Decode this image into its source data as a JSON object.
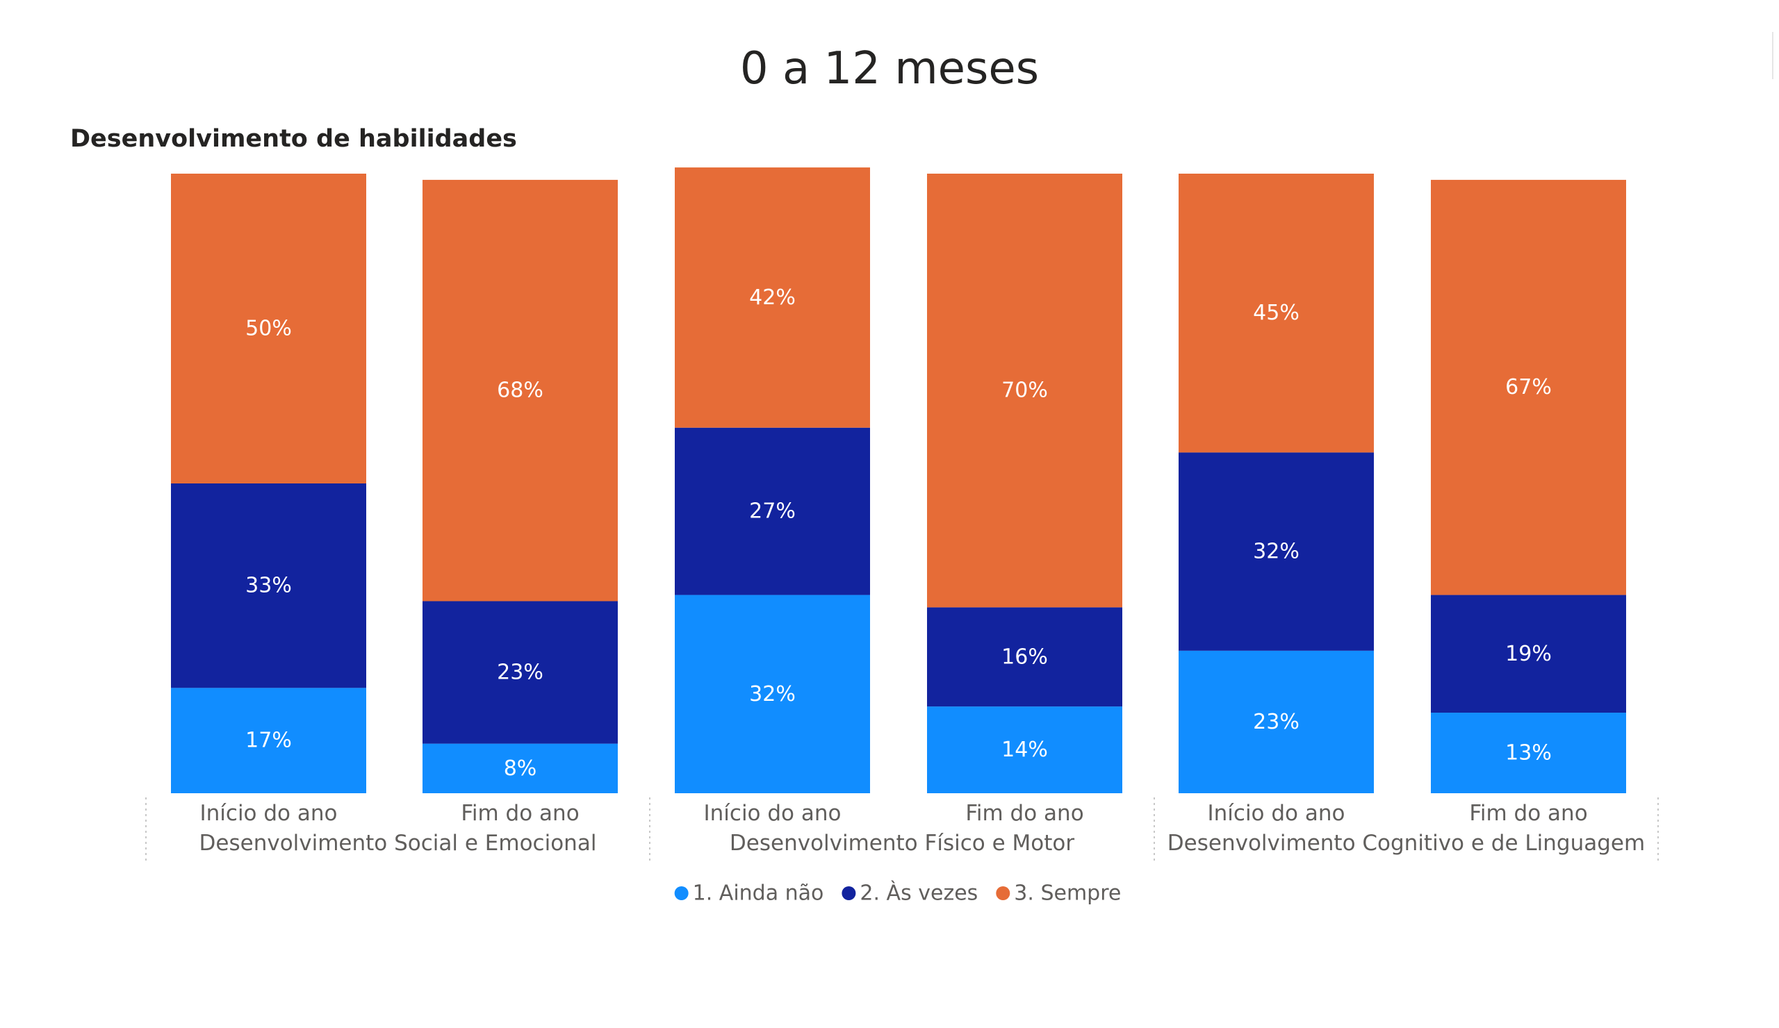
{
  "page": {
    "title": "0 a 12 meses"
  },
  "chart_data": {
    "type": "bar",
    "stacked": true,
    "percent": true,
    "title": "Desenvolvimento de habilidades",
    "groups": [
      "Desenvolvimento Social e Emocional",
      "Desenvolvimento Físico e Motor",
      "Desenvolvimento Cognitivo e de Linguagem"
    ],
    "categories": [
      "Início do ano",
      "Fim do ano",
      "Início do ano",
      "Fim do ano",
      "Início do ano",
      "Fim do ano"
    ],
    "series": [
      {
        "name": "1. Ainda não",
        "color": "#118DFF",
        "values": [
          17,
          8,
          32,
          14,
          23,
          13
        ],
        "labels": [
          "17%",
          "8%",
          "32%",
          "14%",
          "23%",
          "13%"
        ]
      },
      {
        "name": "2. Às vezes",
        "color": "#12239E",
        "values": [
          33,
          23,
          27,
          16,
          32,
          19
        ],
        "labels": [
          "33%",
          "23%",
          "27%",
          "16%",
          "32%",
          "19%"
        ]
      },
      {
        "name": "3. Sempre",
        "color": "#E66C37",
        "values": [
          50,
          68,
          42,
          70,
          45,
          67
        ],
        "labels": [
          "50%",
          "68%",
          "42%",
          "70%",
          "45%",
          "67%"
        ]
      }
    ],
    "ylim": [
      0,
      100
    ],
    "grid": false,
    "legend_position": "bottom"
  }
}
